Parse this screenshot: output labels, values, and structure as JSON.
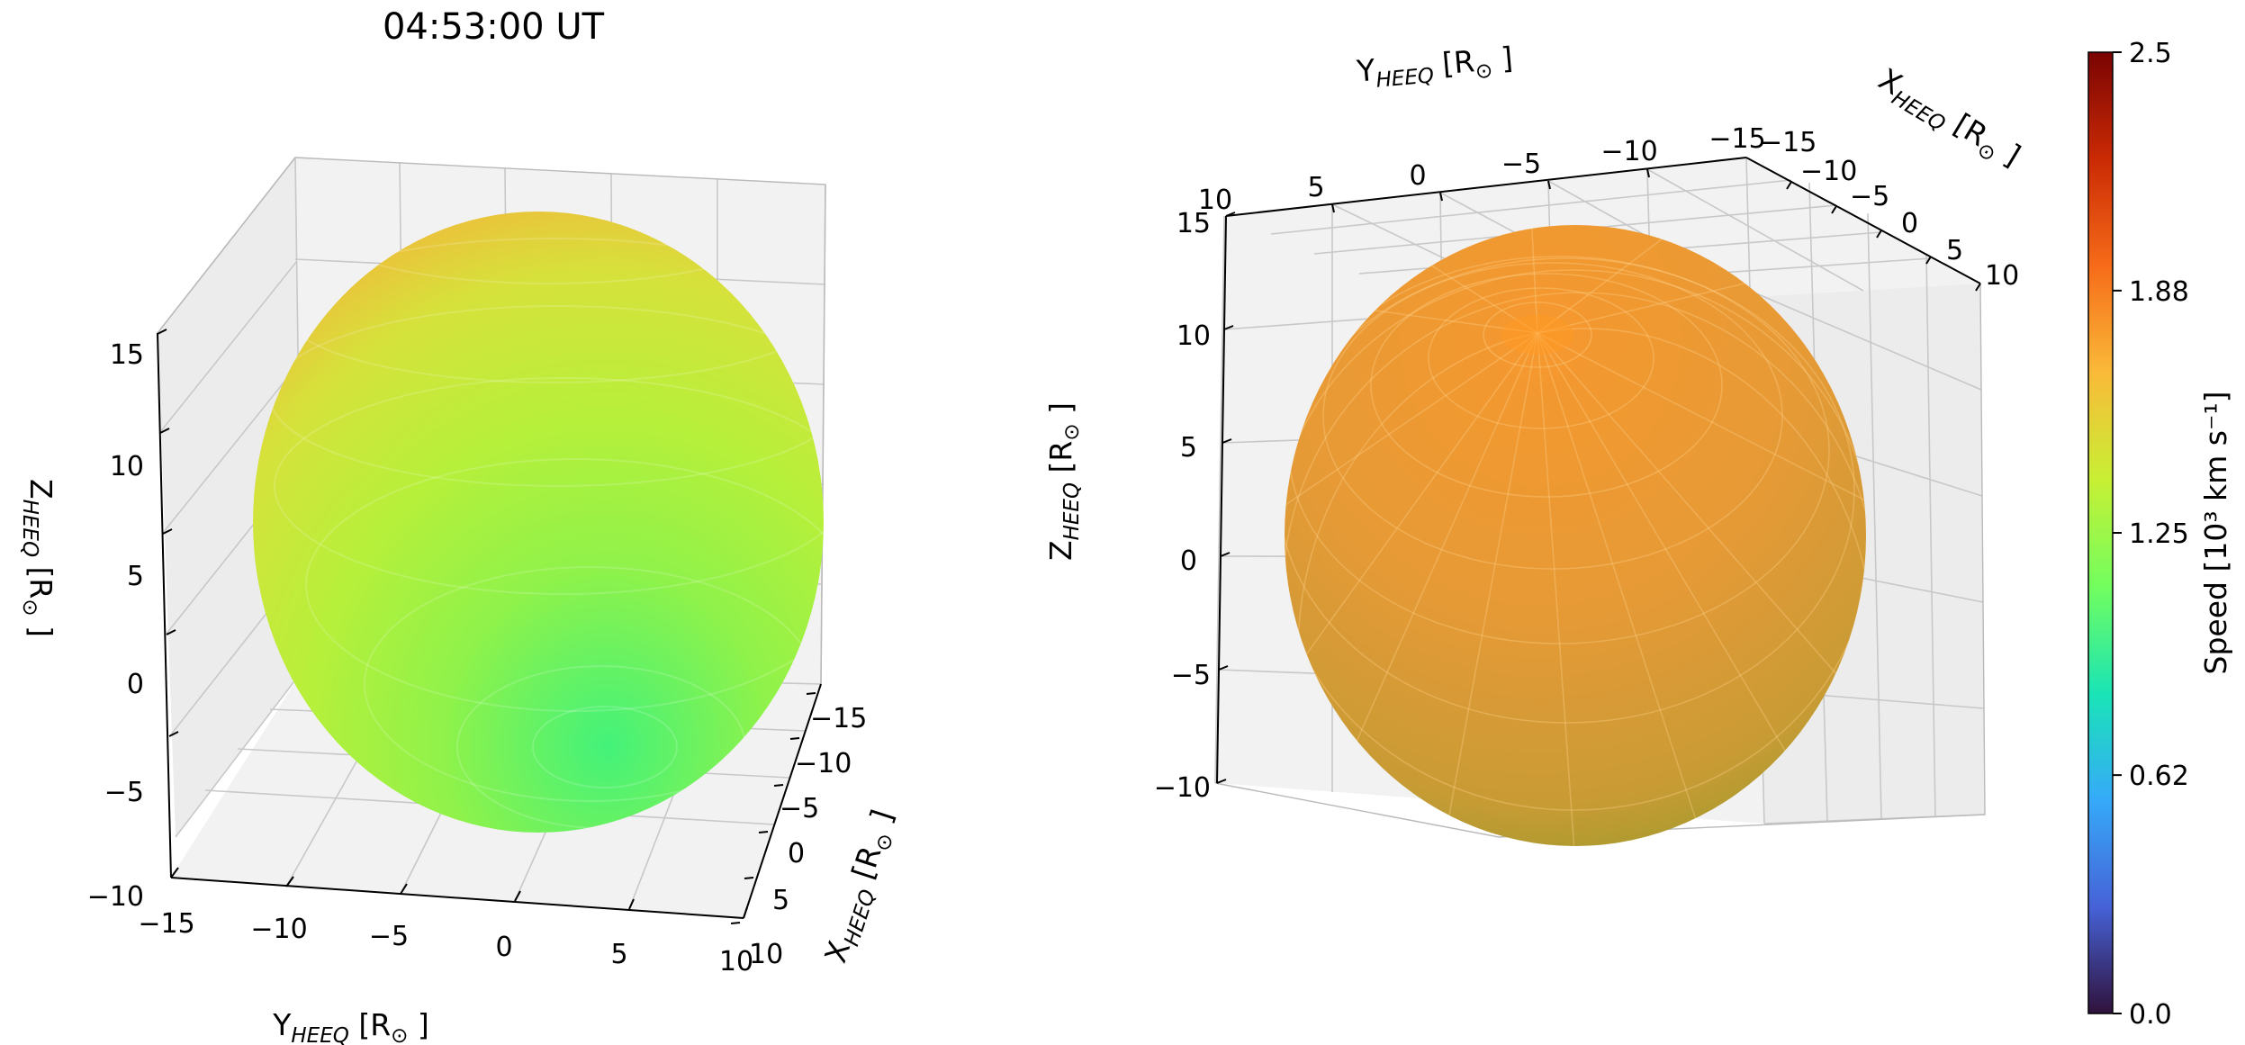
{
  "chart_data": [
    {
      "type": "surface3d",
      "title": "04:53:00 UT",
      "xlabel": "X_HEEQ [R_sun]",
      "ylabel": "Y_HEEQ [R_sun]",
      "zlabel": "Z_HEEQ [R_sun]",
      "xlim": [
        -15,
        10
      ],
      "ylim": [
        -15,
        10
      ],
      "zlim": [
        -10,
        15
      ],
      "x_ticks": [
        "−15",
        "−10",
        "−5",
        "0",
        "5",
        "10"
      ],
      "y_ticks": [
        "−15",
        "−10",
        "−5",
        "0",
        "5",
        "10"
      ],
      "z_ticks": [
        "−10",
        "−5",
        "0",
        "5",
        "10",
        "15"
      ],
      "surface": "ellipsoid",
      "speed_range_kms_1e3": [
        1.3,
        1.75
      ],
      "colors": {
        "top": "#f5b33b",
        "middle": "#b6f03b",
        "bottom": "#43f27a"
      }
    },
    {
      "type": "surface3d",
      "title": "",
      "xlabel": "X_HEEQ [R_sun]",
      "ylabel": "Y_HEEQ [R_sun]",
      "zlabel": "Z_HEEQ [R_sun]",
      "xlim": [
        -15,
        10
      ],
      "ylim": [
        -15,
        10
      ],
      "zlim": [
        -10,
        15
      ],
      "x_ticks": [
        "−15",
        "−10",
        "−5",
        "0",
        "5",
        "10"
      ],
      "y_ticks": [
        "10",
        "5",
        "0",
        "−5",
        "−10",
        "−15"
      ],
      "z_ticks": [
        "−10",
        "−5",
        "0",
        "5",
        "10",
        "15"
      ],
      "surface": "ellipsoid",
      "speed_range_kms_1e3": [
        1.6,
        1.85
      ],
      "colors": {
        "top": "#f6982e",
        "middle": "#e49a36",
        "bottom": "#7b9a25"
      }
    }
  ],
  "colorbar": {
    "label": "Speed [10³ km s⁻¹]",
    "ticks": [
      "0.0",
      "0.62",
      "1.25",
      "1.88",
      "2.5"
    ],
    "range": [
      0,
      2.5
    ],
    "colormap": "turbo",
    "stops": [
      "#30123b",
      "#4662d7",
      "#36aaf9",
      "#1ae4b6",
      "#72fe5e",
      "#c8ef34",
      "#faba39",
      "#f66b19",
      "#ca2a04",
      "#7a0403"
    ]
  }
}
